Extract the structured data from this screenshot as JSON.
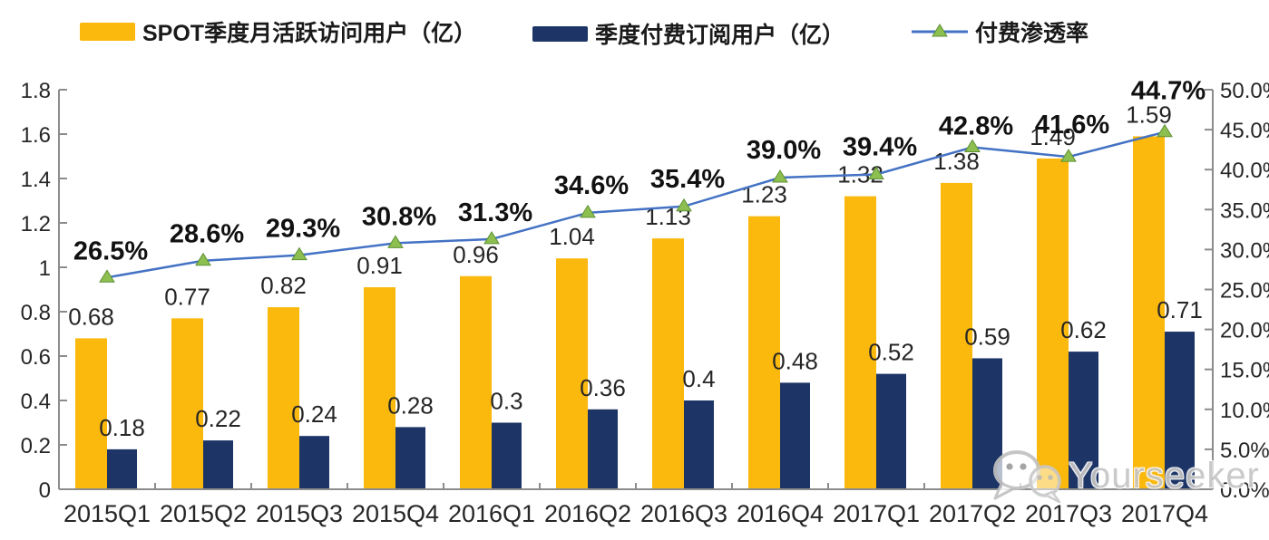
{
  "legend": {
    "items": [
      {
        "label": "SPOT季度月活跃访问用户（亿）",
        "swatch": "bar-yellow"
      },
      {
        "label": "季度付费订阅用户（亿）",
        "swatch": "bar-navy"
      },
      {
        "label": "付费渗透率",
        "swatch": "line-marker"
      }
    ]
  },
  "watermark": {
    "text": "Yourseeker",
    "icon": "wechat-icon"
  },
  "colors": {
    "mau_bar": "#FBB80D",
    "subs_bar": "#1C3566",
    "line": "#4472C4",
    "marker_fill": "#8CBF4F",
    "marker_edge": "#5F9136",
    "axis": "#8C8C8C",
    "label_text": "#262626",
    "pct_text": "#111111"
  },
  "chart_data": {
    "type": "bar",
    "subtype": "grouped-bars-with-line-combo",
    "categories": [
      "2015Q1",
      "2015Q2",
      "2015Q3",
      "2015Q4",
      "2016Q1",
      "2016Q2",
      "2016Q3",
      "2016Q4",
      "2017Q1",
      "2017Q2",
      "2017Q3",
      "2017Q4"
    ],
    "series": [
      {
        "name": "SPOT季度月活跃访问用户（亿）",
        "type": "bar",
        "axis": "left",
        "values": [
          0.68,
          0.77,
          0.82,
          0.91,
          0.96,
          1.04,
          1.13,
          1.23,
          1.32,
          1.38,
          1.49,
          1.59
        ],
        "labels": [
          "0.68",
          "0.77",
          "0.82",
          "0.91",
          "0.96",
          "1.04",
          "1.13",
          "1.23",
          "1.32",
          "1.38",
          "1.49",
          "1.59"
        ]
      },
      {
        "name": "季度付费订阅用户（亿）",
        "type": "bar",
        "axis": "left",
        "values": [
          0.18,
          0.22,
          0.24,
          0.28,
          0.3,
          0.36,
          0.4,
          0.48,
          0.52,
          0.59,
          0.62,
          0.71
        ],
        "labels": [
          "0.18",
          "0.22",
          "0.24",
          "0.28",
          "0.3",
          "0.36",
          "0.4",
          "0.48",
          "0.52",
          "0.59",
          "0.62",
          "0.71"
        ]
      },
      {
        "name": "付费渗透率",
        "type": "line",
        "axis": "right",
        "values": [
          26.5,
          28.6,
          29.3,
          30.8,
          31.3,
          34.6,
          35.4,
          39.0,
          39.4,
          42.8,
          41.6,
          44.7
        ],
        "labels": [
          "26.5%",
          "28.6%",
          "29.3%",
          "30.8%",
          "31.3%",
          "34.6%",
          "35.4%",
          "39.0%",
          "39.4%",
          "42.8%",
          "41.6%",
          "44.7%"
        ]
      }
    ],
    "left_axis": {
      "min": 0,
      "max": 1.8,
      "step": 0.2,
      "tick_labels": [
        "1.8",
        "1.6",
        "1.4",
        "1.2",
        "1",
        "0.8",
        "0.6",
        "0.4",
        "0.2",
        "0"
      ],
      "tick_values": [
        1.8,
        1.6,
        1.4,
        1.2,
        1.0,
        0.8,
        0.6,
        0.4,
        0.2,
        0
      ]
    },
    "right_axis": {
      "min": 0,
      "max": 50,
      "step": 5,
      "tick_labels": [
        "50.0%",
        "45.0%",
        "40.0%",
        "35.0%",
        "30.0%",
        "25.0%",
        "20.0%",
        "15.0%",
        "10.0%",
        "5.0%",
        "0.0%"
      ],
      "tick_values": [
        50,
        45,
        40,
        35,
        30,
        25,
        20,
        15,
        10,
        5,
        0
      ]
    },
    "grid": false,
    "legend_position": "top",
    "title": ""
  }
}
